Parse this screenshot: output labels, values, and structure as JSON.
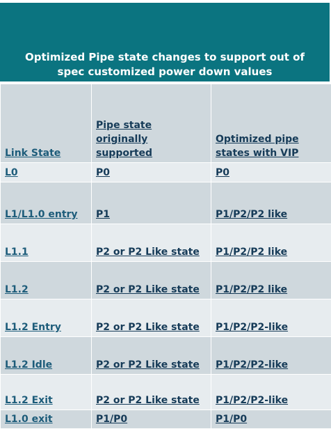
{
  "title": "Optimized Pipe state changes to support out of spec customized power down values",
  "header": [
    "Link State",
    "Pipe state originally supported",
    "Optimized pipe states with VIP"
  ],
  "rows": [
    [
      "L0",
      "P0",
      "P0"
    ],
    [
      "L1/L1.0 entry",
      "P1",
      "P1/P2/P2 like"
    ],
    [
      "L1.1",
      "P2 or P2 Like state",
      "P1/P2/P2 like"
    ],
    [
      "L1.2",
      "P2 or P2 Like state",
      "P1/P2/P2 like"
    ],
    [
      "L1.2 Entry",
      "P2 or P2 Like state",
      "P1/P2/P2-like"
    ],
    [
      "L1.2 Idle",
      "P2 or P2 Like state",
      "P1/P2/P2-like"
    ],
    [
      "L1.2 Exit",
      "P2 or P2 Like state",
      "P1/P2/P2-like"
    ],
    [
      "L1.0 exit",
      "P1/P0",
      "P1/P0"
    ]
  ],
  "colors": {
    "title_bg": "#0b7480",
    "row_dark": "#cfd8dd",
    "row_light": "#e7ecef",
    "text": "#163b58"
  }
}
